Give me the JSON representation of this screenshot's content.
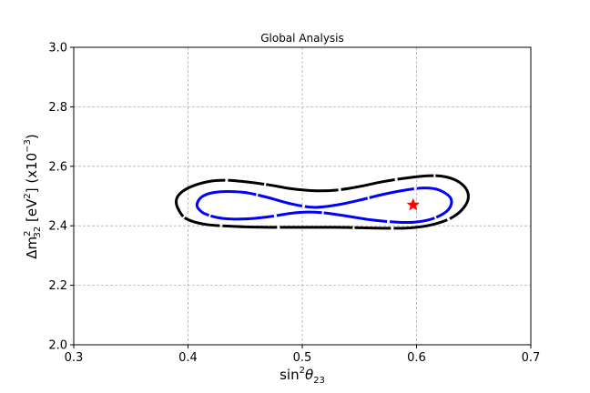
{
  "chart_data": {
    "type": "scatter",
    "title": "Global Analysis",
    "xlabel": {
      "main": "sin",
      "sup": "2",
      "theta": "θ",
      "sub": "23"
    },
    "ylabel": {
      "main": "Δm",
      "sup": "2",
      "sub": "32",
      "units": " [eV",
      "units_sup": "2",
      "units_tail": "] (x10",
      "exp_sup": "−3",
      "exp_tail": ")"
    },
    "xlim": [
      0.3,
      0.7
    ],
    "ylim": [
      2.0,
      3.0
    ],
    "xticks": [
      "0.3",
      "0.4",
      "0.5",
      "0.6",
      "0.7"
    ],
    "yticks": [
      "2.0",
      "2.2",
      "2.4",
      "2.6",
      "2.8",
      "3.0"
    ],
    "grid": true,
    "best_fit": {
      "x": 0.597,
      "y": 2.47,
      "color": "#ff0000",
      "marker": "star"
    },
    "contours": [
      {
        "color": "#000000",
        "points": [
          [
            0.39,
            2.49
          ],
          [
            0.395,
            2.515
          ],
          [
            0.405,
            2.535
          ],
          [
            0.42,
            2.55
          ],
          [
            0.435,
            2.553
          ],
          [
            0.45,
            2.548
          ],
          [
            0.47,
            2.538
          ],
          [
            0.49,
            2.525
          ],
          [
            0.51,
            2.518
          ],
          [
            0.53,
            2.52
          ],
          [
            0.55,
            2.532
          ],
          [
            0.57,
            2.548
          ],
          [
            0.59,
            2.56
          ],
          [
            0.61,
            2.568
          ],
          [
            0.625,
            2.565
          ],
          [
            0.638,
            2.545
          ],
          [
            0.645,
            2.51
          ],
          [
            0.643,
            2.47
          ],
          [
            0.632,
            2.43
          ],
          [
            0.615,
            2.405
          ],
          [
            0.595,
            2.393
          ],
          [
            0.575,
            2.392
          ],
          [
            0.555,
            2.393
          ],
          [
            0.53,
            2.395
          ],
          [
            0.5,
            2.395
          ],
          [
            0.47,
            2.395
          ],
          [
            0.44,
            2.398
          ],
          [
            0.415,
            2.405
          ],
          [
            0.398,
            2.425
          ],
          [
            0.391,
            2.46
          ],
          [
            0.39,
            2.49
          ]
        ]
      },
      {
        "color": "#0000ff",
        "points": [
          [
            0.408,
            2.475
          ],
          [
            0.412,
            2.497
          ],
          [
            0.42,
            2.51
          ],
          [
            0.432,
            2.515
          ],
          [
            0.45,
            2.512
          ],
          [
            0.47,
            2.495
          ],
          [
            0.49,
            2.474
          ],
          [
            0.51,
            2.462
          ],
          [
            0.53,
            2.47
          ],
          [
            0.55,
            2.486
          ],
          [
            0.57,
            2.505
          ],
          [
            0.59,
            2.52
          ],
          [
            0.607,
            2.527
          ],
          [
            0.62,
            2.52
          ],
          [
            0.63,
            2.492
          ],
          [
            0.628,
            2.455
          ],
          [
            0.615,
            2.425
          ],
          [
            0.598,
            2.412
          ],
          [
            0.58,
            2.413
          ],
          [
            0.56,
            2.42
          ],
          [
            0.54,
            2.432
          ],
          [
            0.52,
            2.443
          ],
          [
            0.505,
            2.446
          ],
          [
            0.49,
            2.442
          ],
          [
            0.47,
            2.43
          ],
          [
            0.45,
            2.423
          ],
          [
            0.43,
            2.425
          ],
          [
            0.415,
            2.44
          ],
          [
            0.409,
            2.458
          ],
          [
            0.408,
            2.475
          ]
        ]
      }
    ]
  }
}
